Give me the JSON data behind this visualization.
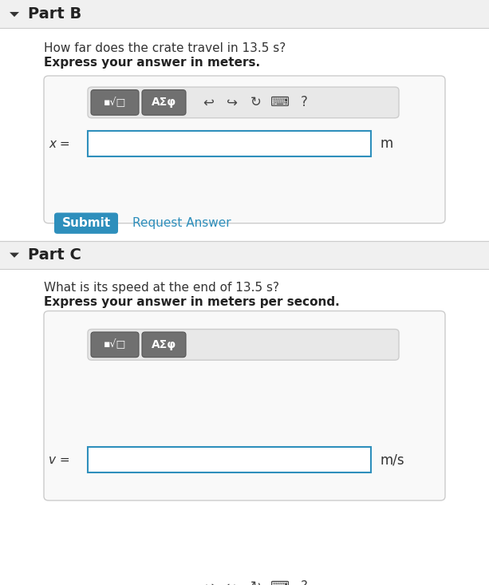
{
  "bg_color": "#ffffff",
  "header_bg": "#f0f0f0",
  "part_b_title": "Part B",
  "part_c_title": "Part C",
  "part_b_question": "How far does the crate travel in 13.5 s?",
  "part_b_bold": "Express your answer in meters.",
  "part_c_question": "What is its speed at the end of 13.5 s?",
  "part_c_bold": "Express your answer in meters per second.",
  "var_b": "x =",
  "var_c": "v =",
  "unit_b": "m",
  "unit_c": "m/s",
  "submit_text": "Submit",
  "submit_bg": "#2e8fbc",
  "submit_text_color": "#ffffff",
  "request_text": "Request Answer",
  "request_text_color": "#2e8fbc",
  "toolbar_bg": "#888888",
  "input_border_color": "#2e8fbc",
  "input_bg": "#ffffff",
  "arrow_color": "#333333",
  "outer_box_bg": "#f9f9f9",
  "outer_box_border": "#cccccc"
}
